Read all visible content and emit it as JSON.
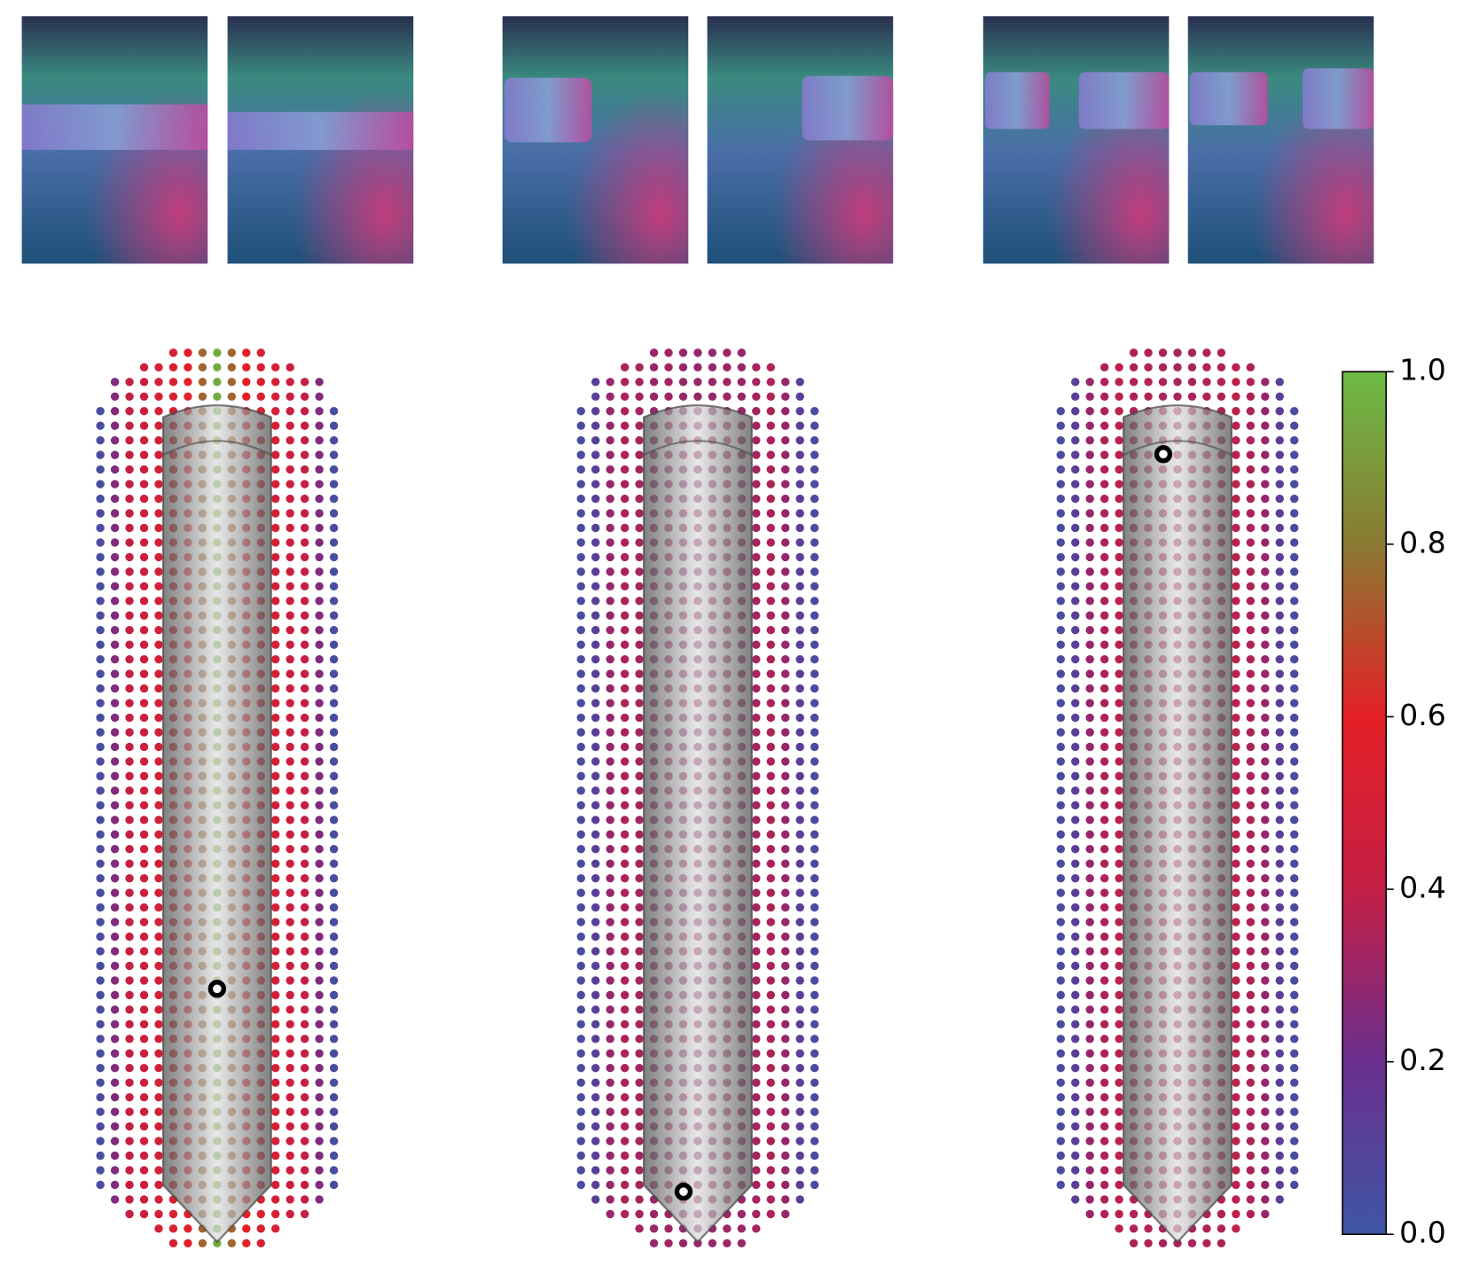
{
  "chart_data": {
    "type": "dotgrid",
    "colormap": [
      "#3f56a4",
      "#6a2f8e",
      "#c41f45",
      "#e42026",
      "#8a7a32",
      "#6cbb45"
    ],
    "panels": [
      {
        "column_values": [
          0.05,
          0.25,
          0.4,
          0.45,
          0.5,
          0.52,
          0.6,
          0.75,
          0.95,
          0.75,
          0.6,
          0.52,
          0.5,
          0.45,
          0.4,
          0.25,
          0.05
        ]
      },
      {
        "column_values": [
          0.05,
          0.12,
          0.3,
          0.35,
          0.33,
          0.3,
          0.32,
          0.3,
          0.3,
          0.3,
          0.32,
          0.3,
          0.33,
          0.35,
          0.3,
          0.12,
          0.05
        ]
      },
      {
        "column_values": [
          0.05,
          0.12,
          0.3,
          0.35,
          0.38,
          0.35,
          0.36,
          0.34,
          0.34,
          0.34,
          0.36,
          0.35,
          0.38,
          0.35,
          0.3,
          0.12,
          0.05
        ]
      }
    ],
    "clim": [
      0,
      1
    ],
    "cticks": [
      {
        "value": 0,
        "label": "0.0"
      },
      0.2,
      0.4,
      0.6,
      0.8,
      {
        "value": 1,
        "label": "1.0"
      }
    ]
  }
}
